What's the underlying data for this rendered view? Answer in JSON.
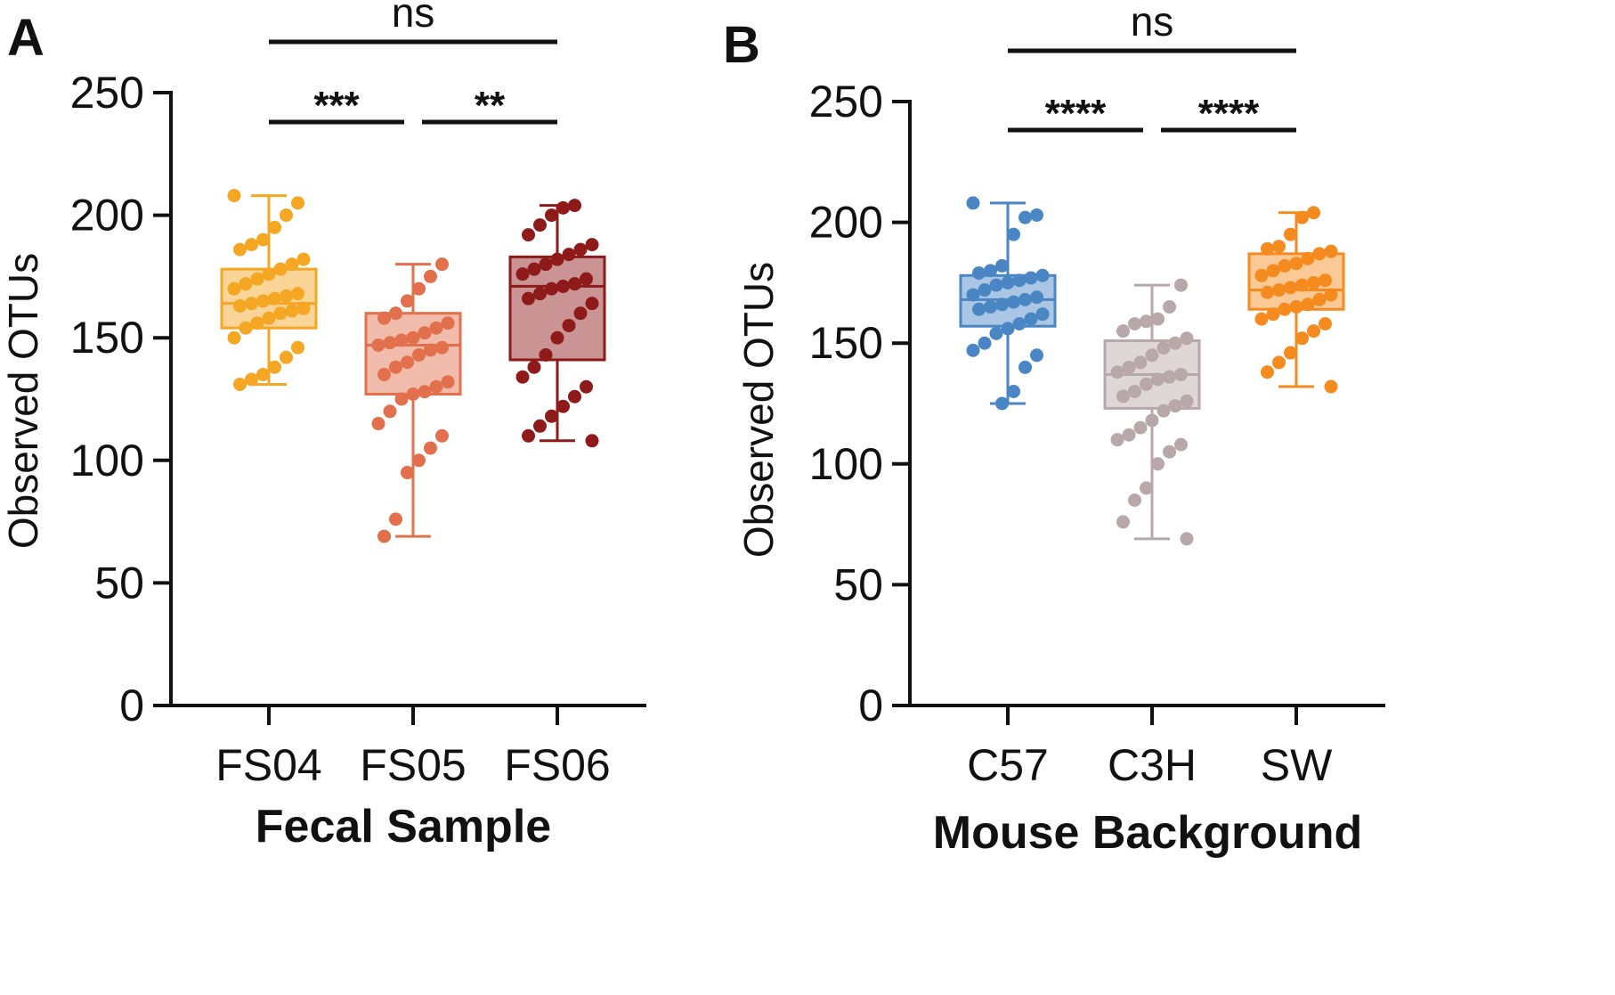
{
  "figure": {
    "panels": [
      "A",
      "B"
    ]
  },
  "chart_data": [
    {
      "panel": "A",
      "type": "box",
      "ylabel": "Observed OTUs",
      "xlabel": "Fecal Sample",
      "ylim": [
        0,
        250
      ],
      "yticks": [
        0,
        50,
        100,
        150,
        200,
        250
      ],
      "categories": [
        "FS04",
        "FS05",
        "FS06"
      ],
      "colors": [
        "#f5a623",
        "#e2704c",
        "#8e1a1a"
      ],
      "boxes": [
        {
          "category": "FS04",
          "min": 131,
          "q1": 154,
          "median": 164,
          "q3": 178,
          "max": 208,
          "points": [
            208,
            205,
            200,
            195,
            190,
            188,
            186,
            182,
            180,
            178,
            176,
            174,
            172,
            170,
            168,
            167,
            166,
            165,
            164,
            163,
            162,
            161,
            160,
            158,
            156,
            154,
            150,
            146,
            142,
            138,
            135,
            133,
            131
          ]
        },
        {
          "category": "FS05",
          "min": 69,
          "q1": 127,
          "median": 147,
          "q3": 160,
          "max": 180,
          "points": [
            180,
            175,
            170,
            165,
            160,
            158,
            156,
            154,
            152,
            150,
            149,
            148,
            147,
            146,
            145,
            143,
            140,
            138,
            135,
            132,
            130,
            128,
            127,
            125,
            120,
            115,
            110,
            105,
            100,
            95,
            76,
            69
          ]
        },
        {
          "category": "FS06",
          "min": 108,
          "q1": 141,
          "median": 171,
          "q3": 183,
          "max": 204,
          "points": [
            204,
            203,
            200,
            196,
            192,
            188,
            186,
            184,
            182,
            180,
            178,
            176,
            174,
            172,
            171,
            170,
            168,
            166,
            164,
            160,
            155,
            150,
            143,
            138,
            134,
            130,
            126,
            122,
            118,
            114,
            110,
            108
          ]
        }
      ],
      "significance": [
        {
          "from": "FS04",
          "to": "FS06",
          "label": "ns"
        },
        {
          "from": "FS04",
          "to": "FS05",
          "label": "***"
        },
        {
          "from": "FS05",
          "to": "FS06",
          "label": "**"
        }
      ]
    },
    {
      "panel": "B",
      "type": "box",
      "ylabel": "Observed OTUs",
      "xlabel": "Mouse Background",
      "ylim": [
        0,
        250
      ],
      "yticks": [
        0,
        50,
        100,
        150,
        200,
        250
      ],
      "categories": [
        "C57",
        "C3H",
        "SW"
      ],
      "colors": [
        "#4a86c4",
        "#b8a8aa",
        "#f58a1f"
      ],
      "boxes": [
        {
          "category": "C57",
          "min": 125,
          "q1": 157,
          "median": 168,
          "q3": 178,
          "max": 208,
          "points": [
            208,
            203,
            202,
            195,
            182,
            180,
            179,
            178,
            177,
            176,
            175,
            174,
            172,
            170,
            169,
            168,
            167,
            166,
            165,
            164,
            162,
            160,
            158,
            156,
            154,
            150,
            147,
            145,
            140,
            130,
            125
          ]
        },
        {
          "category": "C3H",
          "min": 69,
          "q1": 123,
          "median": 137,
          "q3": 151,
          "max": 174,
          "points": [
            174,
            165,
            160,
            159,
            158,
            155,
            152,
            150,
            148,
            145,
            142,
            140,
            138,
            137,
            136,
            135,
            133,
            130,
            128,
            126,
            124,
            122,
            118,
            115,
            112,
            110,
            108,
            105,
            100,
            90,
            85,
            76,
            69
          ]
        },
        {
          "category": "SW",
          "min": 132,
          "q1": 164,
          "median": 172,
          "q3": 187,
          "max": 204,
          "points": [
            204,
            202,
            195,
            190,
            189,
            188,
            187,
            185,
            183,
            182,
            180,
            178,
            176,
            175,
            174,
            173,
            172,
            171,
            170,
            168,
            166,
            165,
            164,
            162,
            160,
            158,
            155,
            152,
            146,
            142,
            138,
            132
          ]
        }
      ],
      "significance": [
        {
          "from": "C57",
          "to": "SW",
          "label": "ns"
        },
        {
          "from": "C57",
          "to": "C3H",
          "label": "****"
        },
        {
          "from": "C3H",
          "to": "SW",
          "label": "****"
        }
      ]
    }
  ]
}
